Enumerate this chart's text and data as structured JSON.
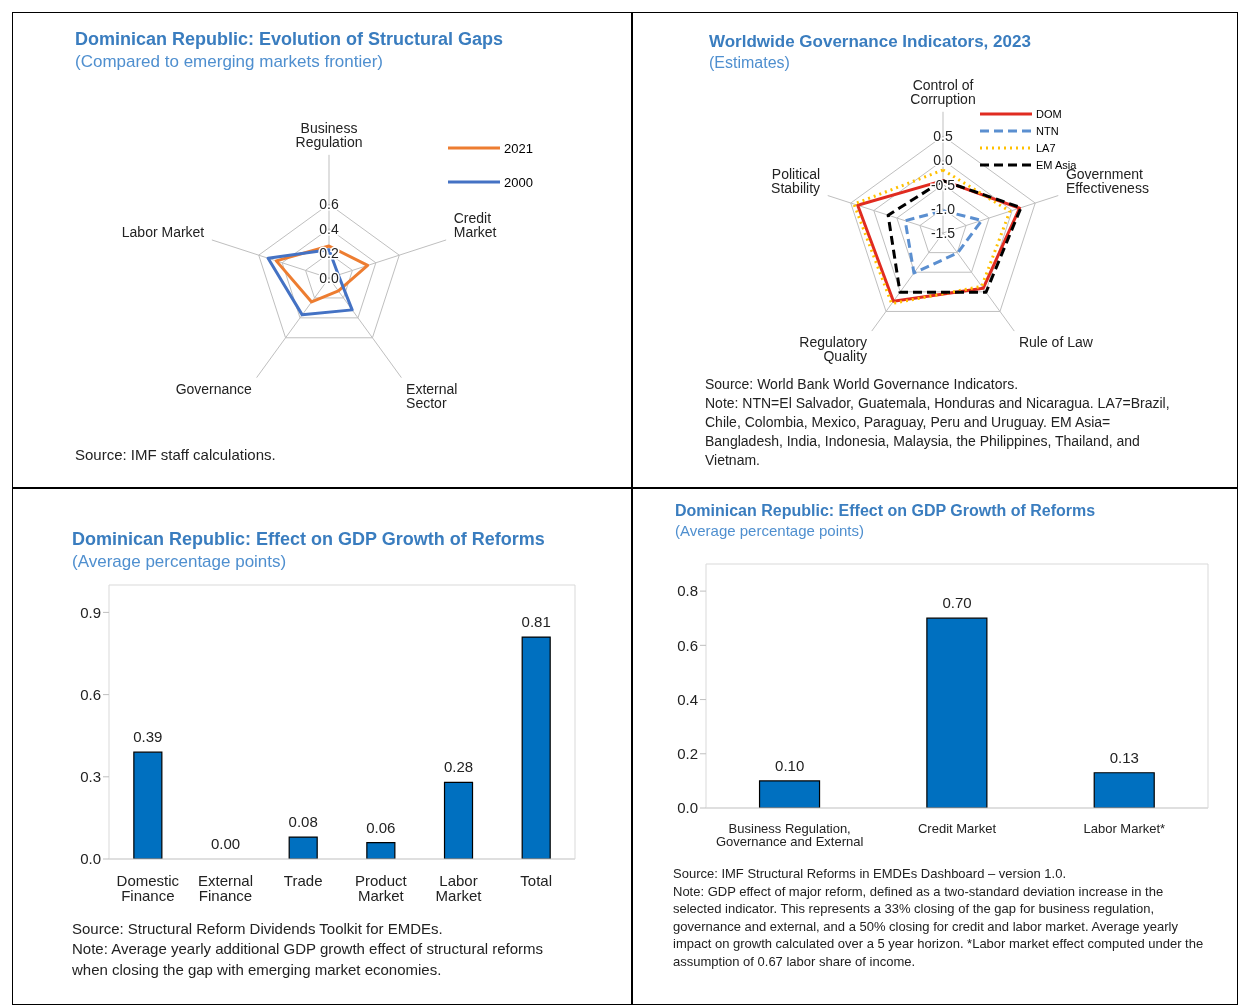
{
  "chart_data": [
    {
      "type": "radar",
      "title": "Dominican Republic: Evolution of Structural Gaps",
      "subtitle": "(Compared to emerging markets frontier)",
      "categories": [
        "Business Regulation",
        "Credit Market",
        "External Sector",
        "Governance",
        "Labor Market"
      ],
      "series": [
        {
          "name": "2021",
          "color": "#ed7d31",
          "line_style": "solid",
          "values": [
            0.26,
            0.33,
            0.13,
            0.24,
            0.45
          ]
        },
        {
          "name": "2000",
          "color": "#4472c4",
          "line_style": "solid",
          "values": [
            0.23,
            0.08,
            0.32,
            0.37,
            0.52
          ]
        }
      ],
      "ylim": [
        0,
        0.6
      ],
      "yticks": [
        {
          "value": 0,
          "label": "0.0"
        },
        {
          "value": 0.2,
          "label": "0.2"
        },
        {
          "value": 0.4,
          "label": "0.4"
        },
        {
          "value": 0.6,
          "label": "0.6"
        }
      ],
      "grid": true,
      "legend": "right",
      "marker": "none",
      "annotations": [
        "Source: IMF staff calculations."
      ]
    },
    {
      "type": "radar",
      "title": "Worldwide Governance Indicators, 2023",
      "subtitle": "(Estimates)",
      "categories": [
        "Control of Corruption",
        "Government Effectiveness",
        "Rule of Law",
        "Regulatory Quality",
        "Political Stability"
      ],
      "series": [
        {
          "name": "DOM",
          "color": "#e02b20",
          "line_style": "solid",
          "values": [
            -0.42,
            0.16,
            -0.09,
            0.24,
            0.35
          ]
        },
        {
          "name": "NTN",
          "color": "#5b8fd0",
          "line_style": "dashed",
          "values": [
            -1.04,
            -0.66,
            -0.99,
            -0.48,
            -0.68
          ]
        },
        {
          "name": "LA7",
          "color": "#ffc000",
          "line_style": "dotted",
          "values": [
            -0.2,
            -0.05,
            -0.14,
            0.3,
            0.43
          ]
        },
        {
          "name": "EM Asia",
          "color": "#000000",
          "line_style": "dashed",
          "values": [
            -0.42,
            0.19,
            0.01,
            0.01,
            -0.31
          ]
        }
      ],
      "ylim": [
        -1.5,
        0.5
      ],
      "yticks": [
        {
          "value": -1.5,
          "label": "-1.5"
        },
        {
          "value": -1,
          "label": "-1.0"
        },
        {
          "value": -0.5,
          "label": "-0.5"
        },
        {
          "value": 0,
          "label": "0.0"
        },
        {
          "value": 0.5,
          "label": "0.5"
        }
      ],
      "grid": true,
      "legend": "top right",
      "marker": "none",
      "annotations": [
        "Source: World Bank World Governance Indicators.",
        "Note: NTN=El Salvador, Guatemala, Honduras and Nicaragua. LA7=Brazil, Chile, Colombia, Mexico, Paraguay, Peru and Uruguay. EM Asia= Bangladesh, India, Indonesia, Malaysia, the Philippines, Thailand, and Vietnam."
      ]
    },
    {
      "type": "bar",
      "title": "Dominican Republic: Effect on GDP Growth of Reforms",
      "subtitle": "(Average percentage points)",
      "categories": [
        "Domestic Finance",
        "External Finance",
        "Trade",
        "Product Market",
        "Labor Market",
        "Total"
      ],
      "values": [
        0.39,
        0,
        0.08,
        0.06,
        0.28,
        0.81
      ],
      "value_labels": [
        "0.39",
        "0.00",
        "0.08",
        "0.06",
        "0.28",
        "0.81"
      ],
      "color": "#0070c0",
      "ylim": [
        0,
        1
      ],
      "yticks": [
        {
          "value": 0,
          "label": "0.0"
        },
        {
          "value": 0.3,
          "label": "0.3"
        },
        {
          "value": 0.6,
          "label": "0.6"
        },
        {
          "value": 0.9,
          "label": "0.9"
        }
      ],
      "annotations": [
        "Source: Structural Reform Dividends Toolkit for EMDEs.",
        "Note: Average yearly additional GDP growth effect of structural reforms when closing the gap with emerging market economies."
      ]
    },
    {
      "type": "bar",
      "title": "Dominican Republic: Effect on GDP Growth of Reforms",
      "subtitle": "(Average percentage points)",
      "categories": [
        "Business Regulation, Governance and External",
        "Credit Market",
        "Labor Market*"
      ],
      "values": [
        0.1,
        0.7,
        0.13
      ],
      "value_labels": [
        "0.10",
        "0.70",
        "0.13"
      ],
      "color": "#0070c0",
      "ylim": [
        0,
        0.9
      ],
      "yticks": [
        {
          "value": 0,
          "label": "0.0"
        },
        {
          "value": 0.2,
          "label": "0.2"
        },
        {
          "value": 0.4,
          "label": "0.4"
        },
        {
          "value": 0.6,
          "label": "0.6"
        },
        {
          "value": 0.8,
          "label": "0.8"
        }
      ],
      "annotations": [
        "Source:  IMF Structural Reforms in EMDEs Dashboard – version 1.0.",
        "Note: GDP effect of major reform, defined as a two-standard deviation increase in the selected indicator. This represents a 33% closing of the gap for business regulation, governance and external, and a 50% closing for credit and labor market. Average yearly impact on growth calculated over a 5 year horizon. *Labor market effect computed under the assumption of 0.67 labor share of income."
      ]
    }
  ]
}
